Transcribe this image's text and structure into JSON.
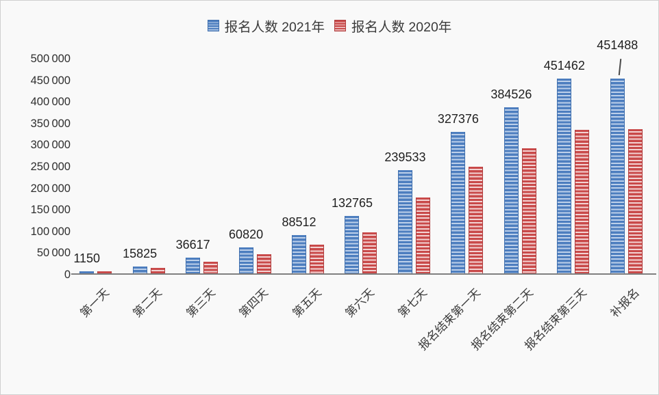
{
  "chart_data": {
    "type": "bar",
    "title": "",
    "categories": [
      "第一天",
      "第二天",
      "第三天",
      "第四天",
      "第五天",
      "第六天",
      "第七天",
      "报名结束第一天",
      "报名结束第二天",
      "报名结束第三天",
      "补报名"
    ],
    "series": [
      {
        "name": "报名人数 2021年",
        "color": "#4d7ebf",
        "stripe_light_color": "#bdd0ea",
        "edge_color": "#3f6fae",
        "values": [
          1150,
          15825,
          36617,
          60820,
          88512,
          132765,
          239533,
          327376,
          384526,
          451462,
          451488
        ],
        "data_labels": [
          "1150",
          "15825",
          "36617",
          "60820",
          "88512",
          "132765",
          "239533",
          "327376",
          "384526",
          "451462",
          "451488"
        ]
      },
      {
        "name": "报名人数 2020年",
        "color": "#c94a4a",
        "stripe_light_color": "#f3d3d3",
        "edge_color": "#b03c3c",
        "values": [
          3500,
          12000,
          27000,
          45000,
          67000,
          95000,
          176000,
          247000,
          289000,
          333000,
          334000
        ]
      }
    ],
    "ylim": [
      0,
      500000
    ],
    "ytick_step": 50000,
    "ytick_labels": [
      "500 000",
      "450 000",
      "400 000",
      "350 000",
      "300 000",
      "250 000",
      "200 000",
      "150 000",
      "100 000",
      "50 000",
      "0"
    ],
    "grid": false,
    "legend_position": "top",
    "colors": {
      "background": "#f9f9f9",
      "axis_line": "#7f7f7f",
      "data_label_text": "#1f1f1f",
      "tick_text": "#2e2e2e"
    }
  }
}
